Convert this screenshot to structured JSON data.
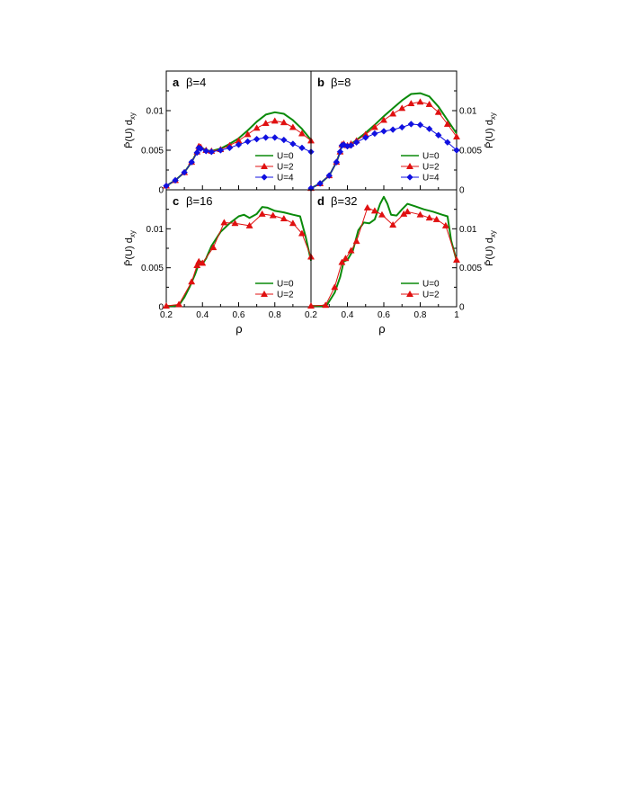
{
  "figure": {
    "x_axis_label": "ρ",
    "y_axis_label": "P̄(U) d",
    "y_axis_label_sub": "xy"
  },
  "colors": {
    "U=0": "#0a8a0a",
    "U=2": "#e01010",
    "U=4": "#1010e0"
  },
  "chart_data": [
    {
      "type": "line",
      "panel": "a",
      "title": "β=4",
      "xlabel": "",
      "ylabel": "P̄(U) d_xy",
      "xlim": [
        0.2,
        1.0
      ],
      "ylim": [
        0,
        0.015
      ],
      "yticks": [
        "0",
        "0.005",
        "0.01"
      ],
      "legend": "lower-right",
      "series": [
        {
          "name": "U=0",
          "marker": "none",
          "x": [
            0.2,
            0.25,
            0.3,
            0.34,
            0.37,
            0.38,
            0.39,
            0.42,
            0.45,
            0.5,
            0.55,
            0.6,
            0.65,
            0.7,
            0.75,
            0.8,
            0.85,
            0.9,
            0.95,
            1.0
          ],
          "y": [
            0.0005,
            0.0012,
            0.0022,
            0.0035,
            0.0048,
            0.0055,
            0.0054,
            0.005,
            0.0049,
            0.0052,
            0.0058,
            0.0065,
            0.0075,
            0.0086,
            0.0095,
            0.0098,
            0.0096,
            0.0088,
            0.0077,
            0.0063
          ]
        },
        {
          "name": "U=2",
          "marker": "triangle",
          "x": [
            0.2,
            0.25,
            0.3,
            0.34,
            0.37,
            0.38,
            0.39,
            0.42,
            0.45,
            0.5,
            0.55,
            0.6,
            0.65,
            0.7,
            0.75,
            0.8,
            0.85,
            0.9,
            0.95,
            1.0
          ],
          "y": [
            0.0005,
            0.0012,
            0.0022,
            0.0035,
            0.0048,
            0.0055,
            0.0054,
            0.005,
            0.0049,
            0.0051,
            0.0056,
            0.0062,
            0.007,
            0.0078,
            0.0084,
            0.0087,
            0.0085,
            0.0079,
            0.0071,
            0.0062
          ]
        },
        {
          "name": "U=4",
          "marker": "diamond",
          "x": [
            0.2,
            0.25,
            0.3,
            0.34,
            0.37,
            0.38,
            0.39,
            0.42,
            0.45,
            0.5,
            0.55,
            0.6,
            0.65,
            0.7,
            0.75,
            0.8,
            0.85,
            0.9,
            0.95,
            1.0
          ],
          "y": [
            0.0005,
            0.0012,
            0.0022,
            0.0035,
            0.0047,
            0.0053,
            0.0052,
            0.0049,
            0.0048,
            0.005,
            0.0053,
            0.0057,
            0.0061,
            0.0064,
            0.0066,
            0.0066,
            0.0063,
            0.0058,
            0.0053,
            0.0048
          ]
        }
      ]
    },
    {
      "type": "line",
      "panel": "b",
      "title": "β=8",
      "xlabel": "",
      "ylabel": "P̄(U) d_xy",
      "xlim": [
        0.2,
        1.0
      ],
      "ylim": [
        0,
        0.015
      ],
      "yticks": [
        "0",
        "0.005",
        "0.01"
      ],
      "legend": "lower-right",
      "series": [
        {
          "name": "U=0",
          "marker": "none",
          "x": [
            0.2,
            0.25,
            0.3,
            0.34,
            0.36,
            0.37,
            0.38,
            0.4,
            0.42,
            0.45,
            0.5,
            0.55,
            0.6,
            0.65,
            0.7,
            0.75,
            0.8,
            0.85,
            0.9,
            0.95,
            1.0
          ],
          "y": [
            0.0002,
            0.0008,
            0.0018,
            0.0035,
            0.0048,
            0.0057,
            0.0058,
            0.0056,
            0.0058,
            0.0063,
            0.0072,
            0.0082,
            0.0093,
            0.0103,
            0.0113,
            0.0121,
            0.0122,
            0.0118,
            0.0105,
            0.0088,
            0.0071
          ]
        },
        {
          "name": "U=2",
          "marker": "triangle",
          "x": [
            0.2,
            0.25,
            0.3,
            0.34,
            0.36,
            0.37,
            0.38,
            0.4,
            0.42,
            0.45,
            0.5,
            0.55,
            0.6,
            0.65,
            0.7,
            0.75,
            0.8,
            0.85,
            0.9,
            0.95,
            1.0
          ],
          "y": [
            0.0002,
            0.0008,
            0.0018,
            0.0035,
            0.0048,
            0.0057,
            0.0058,
            0.0056,
            0.0058,
            0.0062,
            0.007,
            0.0079,
            0.0088,
            0.0096,
            0.0103,
            0.0109,
            0.0111,
            0.0108,
            0.0098,
            0.0083,
            0.0067
          ]
        },
        {
          "name": "U=4",
          "marker": "diamond",
          "x": [
            0.2,
            0.25,
            0.3,
            0.34,
            0.36,
            0.37,
            0.38,
            0.4,
            0.42,
            0.45,
            0.5,
            0.55,
            0.6,
            0.65,
            0.7,
            0.75,
            0.8,
            0.85,
            0.9,
            0.95,
            1.0
          ],
          "y": [
            0.0002,
            0.0008,
            0.0018,
            0.0035,
            0.0048,
            0.0056,
            0.0057,
            0.0055,
            0.0056,
            0.006,
            0.0066,
            0.0071,
            0.0074,
            0.0076,
            0.0079,
            0.0083,
            0.0082,
            0.0077,
            0.0069,
            0.006,
            0.005
          ]
        }
      ]
    },
    {
      "type": "line",
      "panel": "c",
      "title": "β=16",
      "xlabel": "ρ",
      "ylabel": "P̄(U) d_xy",
      "xlim": [
        0.2,
        1.0
      ],
      "ylim": [
        0,
        0.015
      ],
      "xticks": [
        "0.2",
        "0.4",
        "0.6",
        "0.8"
      ],
      "yticks": [
        "0",
        "0.005",
        "0.01"
      ],
      "legend": "lower-right",
      "series": [
        {
          "name": "U=0",
          "marker": "none",
          "x": [
            0.2,
            0.24,
            0.27,
            0.3,
            0.33,
            0.36,
            0.38,
            0.39,
            0.4,
            0.42,
            0.45,
            0.5,
            0.55,
            0.6,
            0.63,
            0.66,
            0.7,
            0.73,
            0.76,
            0.8,
            0.85,
            0.9,
            0.94,
            0.97,
            1.0
          ],
          "y": [
            0.0001,
            0.0001,
            0.0002,
            0.0012,
            0.0026,
            0.0042,
            0.0055,
            0.0058,
            0.0055,
            0.0062,
            0.0078,
            0.0096,
            0.0107,
            0.0116,
            0.0118,
            0.0114,
            0.0119,
            0.0128,
            0.0127,
            0.0123,
            0.0121,
            0.0118,
            0.0116,
            0.009,
            0.0059
          ]
        },
        {
          "name": "U=2",
          "marker": "triangle",
          "x": [
            0.2,
            0.27,
            0.34,
            0.37,
            0.38,
            0.4,
            0.46,
            0.52,
            0.58,
            0.66,
            0.73,
            0.79,
            0.85,
            0.9,
            0.95,
            1.0
          ],
          "y": [
            0.0001,
            0.0003,
            0.0032,
            0.0053,
            0.0058,
            0.0056,
            0.0076,
            0.0108,
            0.0107,
            0.0104,
            0.0119,
            0.0117,
            0.0113,
            0.0107,
            0.0094,
            0.0064
          ]
        }
      ]
    },
    {
      "type": "line",
      "panel": "d",
      "title": "β=32",
      "xlabel": "ρ",
      "ylabel": "P̄(U) d_xy",
      "xlim": [
        0.2,
        1.0
      ],
      "ylim": [
        0,
        0.015
      ],
      "xticks": [
        "0.2",
        "0.4",
        "0.6",
        "0.8",
        "1"
      ],
      "yticks": [
        "0",
        "0.005",
        "0.01"
      ],
      "legend": "lower-right",
      "series": [
        {
          "name": "U=0",
          "marker": "none",
          "x": [
            0.2,
            0.26,
            0.29,
            0.33,
            0.36,
            0.38,
            0.4,
            0.43,
            0.46,
            0.49,
            0.52,
            0.55,
            0.58,
            0.6,
            0.62,
            0.64,
            0.67,
            0.7,
            0.73,
            0.77,
            0.82,
            0.87,
            0.92,
            0.95,
            0.97,
            1.0
          ],
          "y": [
            0.0001,
            0.0001,
            0.0003,
            0.0018,
            0.0038,
            0.0058,
            0.006,
            0.0072,
            0.0098,
            0.0108,
            0.0107,
            0.0112,
            0.0132,
            0.0141,
            0.0132,
            0.0118,
            0.0117,
            0.0125,
            0.0132,
            0.0129,
            0.0125,
            0.0122,
            0.0118,
            0.0116,
            0.0085,
            0.0059
          ]
        },
        {
          "name": "U=2",
          "marker": "triangle",
          "x": [
            0.2,
            0.28,
            0.33,
            0.37,
            0.39,
            0.42,
            0.45,
            0.51,
            0.55,
            0.59,
            0.65,
            0.71,
            0.73,
            0.8,
            0.85,
            0.89,
            0.94,
            1.0
          ],
          "y": [
            0.0001,
            0.0002,
            0.0025,
            0.0057,
            0.0062,
            0.0072,
            0.0084,
            0.0127,
            0.0123,
            0.0118,
            0.0105,
            0.0119,
            0.0122,
            0.0118,
            0.0114,
            0.0112,
            0.0104,
            0.006
          ]
        }
      ]
    }
  ]
}
